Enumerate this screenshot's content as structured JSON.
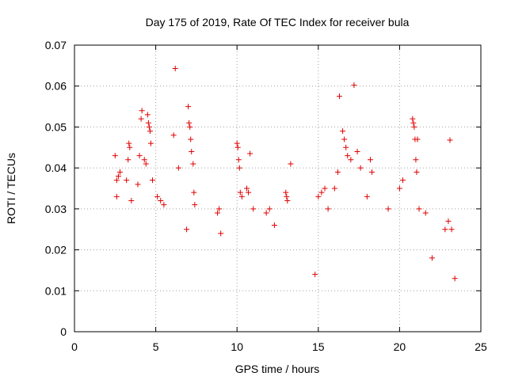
{
  "chart_data": {
    "type": "scatter",
    "title": "Day 175 of 2019, Rate Of TEC Index for receiver bula",
    "xlabel": "GPS time / hours",
    "ylabel": "ROTI / TECUs",
    "xlim": [
      0,
      25
    ],
    "ylim": [
      0,
      0.07
    ],
    "x_ticks": [
      "0",
      "5",
      "10",
      "15",
      "20",
      "25"
    ],
    "y_ticks": [
      "0",
      "0.01",
      "0.02",
      "0.03",
      "0.04",
      "0.05",
      "0.06",
      "0.07"
    ],
    "grid": true,
    "marker": "plus",
    "series": [
      {
        "color": "#e00000",
        "points": [
          [
            2.5,
            0.043
          ],
          [
            2.6,
            0.037
          ],
          [
            2.7,
            0.038
          ],
          [
            2.8,
            0.039
          ],
          [
            2.6,
            0.033
          ],
          [
            3.2,
            0.037
          ],
          [
            3.3,
            0.042
          ],
          [
            3.4,
            0.045
          ],
          [
            3.35,
            0.046
          ],
          [
            3.5,
            0.032
          ],
          [
            3.9,
            0.036
          ],
          [
            4.0,
            0.043
          ],
          [
            4.1,
            0.052
          ],
          [
            4.15,
            0.054
          ],
          [
            4.3,
            0.042
          ],
          [
            4.4,
            0.041
          ],
          [
            4.5,
            0.053
          ],
          [
            4.55,
            0.051
          ],
          [
            4.6,
            0.05
          ],
          [
            4.65,
            0.049
          ],
          [
            4.7,
            0.046
          ],
          [
            4.8,
            0.037
          ],
          [
            5.1,
            0.033
          ],
          [
            5.3,
            0.032
          ],
          [
            5.5,
            0.031
          ],
          [
            6.1,
            0.048
          ],
          [
            6.2,
            0.0643
          ],
          [
            6.4,
            0.04
          ],
          [
            6.9,
            0.025
          ],
          [
            7.0,
            0.055
          ],
          [
            7.05,
            0.051
          ],
          [
            7.1,
            0.05
          ],
          [
            7.15,
            0.047
          ],
          [
            7.2,
            0.044
          ],
          [
            7.3,
            0.041
          ],
          [
            7.35,
            0.034
          ],
          [
            7.4,
            0.031
          ],
          [
            8.8,
            0.029
          ],
          [
            8.9,
            0.03
          ],
          [
            9.0,
            0.024
          ],
          [
            10.0,
            0.046
          ],
          [
            10.05,
            0.045
          ],
          [
            10.1,
            0.042
          ],
          [
            10.15,
            0.04
          ],
          [
            10.2,
            0.034
          ],
          [
            10.3,
            0.033
          ],
          [
            10.6,
            0.035
          ],
          [
            10.7,
            0.034
          ],
          [
            10.8,
            0.0435
          ],
          [
            11.0,
            0.03
          ],
          [
            11.8,
            0.029
          ],
          [
            12.0,
            0.03
          ],
          [
            12.3,
            0.026
          ],
          [
            13.0,
            0.034
          ],
          [
            13.05,
            0.033
          ],
          [
            13.1,
            0.032
          ],
          [
            13.3,
            0.041
          ],
          [
            14.8,
            0.014
          ],
          [
            15.0,
            0.033
          ],
          [
            15.2,
            0.034
          ],
          [
            15.4,
            0.035
          ],
          [
            15.6,
            0.03
          ],
          [
            16.0,
            0.035
          ],
          [
            16.2,
            0.039
          ],
          [
            16.3,
            0.0575
          ],
          [
            16.5,
            0.049
          ],
          [
            16.6,
            0.047
          ],
          [
            16.7,
            0.045
          ],
          [
            16.8,
            0.043
          ],
          [
            17.0,
            0.042
          ],
          [
            17.2,
            0.0602
          ],
          [
            17.4,
            0.044
          ],
          [
            17.6,
            0.04
          ],
          [
            18.0,
            0.033
          ],
          [
            18.2,
            0.042
          ],
          [
            18.3,
            0.039
          ],
          [
            19.3,
            0.03
          ],
          [
            20.0,
            0.035
          ],
          [
            20.2,
            0.037
          ],
          [
            20.8,
            0.052
          ],
          [
            20.85,
            0.051
          ],
          [
            20.9,
            0.05
          ],
          [
            20.95,
            0.047
          ],
          [
            21.0,
            0.042
          ],
          [
            21.05,
            0.039
          ],
          [
            21.1,
            0.047
          ],
          [
            21.2,
            0.03
          ],
          [
            21.6,
            0.029
          ],
          [
            22.0,
            0.018
          ],
          [
            22.8,
            0.025
          ],
          [
            23.0,
            0.027
          ],
          [
            23.1,
            0.0468
          ],
          [
            23.2,
            0.025
          ],
          [
            23.4,
            0.013
          ]
        ]
      }
    ]
  }
}
